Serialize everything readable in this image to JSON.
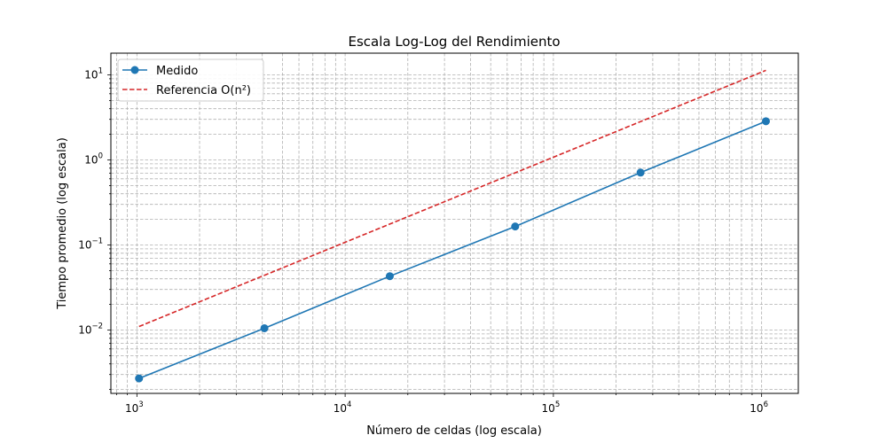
{
  "chart_data": {
    "type": "line",
    "title": "Escala Log-Log del Rendimiento",
    "xlabel": "Número de celdas (log escala)",
    "ylabel": "Tiempo promedio (log escala)",
    "xscale": "log",
    "yscale": "log",
    "xlim": [
      750,
      1500000
    ],
    "ylim": [
      0.0018,
      18
    ],
    "grid": true,
    "legend_position": "top-left",
    "x_ticks": [
      {
        "value": 1000,
        "base": "10",
        "exp": "3"
      },
      {
        "value": 10000,
        "base": "10",
        "exp": "4"
      },
      {
        "value": 100000,
        "base": "10",
        "exp": "5"
      },
      {
        "value": 1000000,
        "base": "10",
        "exp": "6"
      }
    ],
    "y_ticks": [
      {
        "value": 0.01,
        "base": "10",
        "exp": "−2"
      },
      {
        "value": 0.1,
        "base": "10",
        "exp": "−1"
      },
      {
        "value": 1,
        "base": "10",
        "exp": "0"
      },
      {
        "value": 10,
        "base": "10",
        "exp": "1"
      }
    ],
    "series": [
      {
        "name": "Medido",
        "color": "#1f77b4",
        "style": "solid",
        "marker": "circle",
        "x": [
          1024,
          4096,
          16384,
          65536,
          262144,
          1048576
        ],
        "y": [
          0.0027,
          0.0105,
          0.043,
          0.165,
          0.71,
          2.85
        ]
      },
      {
        "name": "Referencia O(n²)",
        "color": "#d62728",
        "style": "dashed",
        "marker": "none",
        "x": [
          1024,
          1048576
        ],
        "y": [
          0.011,
          11.3
        ]
      }
    ]
  }
}
